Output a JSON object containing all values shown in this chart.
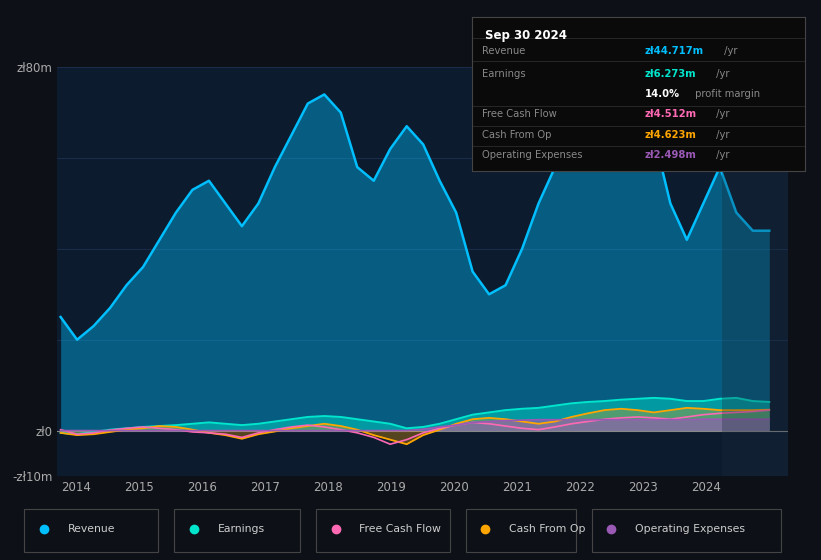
{
  "bg_color": "#0d1117",
  "plot_bg_color": "#0d1b2e",
  "ylim": [
    -10,
    80
  ],
  "xlim": [
    2013.7,
    2025.3
  ],
  "xticks": [
    2014,
    2015,
    2016,
    2017,
    2018,
    2019,
    2020,
    2021,
    2022,
    2023,
    2024
  ],
  "grid_color": "#1e3050",
  "colors": {
    "revenue": "#00bfff",
    "earnings": "#00e5cc",
    "fcf": "#ff69b4",
    "cfo": "#ffa500",
    "opex": "#9b59b6"
  },
  "revenue": [
    25,
    20,
    23,
    27,
    32,
    36,
    42,
    48,
    53,
    55,
    50,
    45,
    50,
    58,
    65,
    72,
    74,
    70,
    58,
    55,
    62,
    67,
    63,
    55,
    48,
    35,
    30,
    32,
    40,
    50,
    58,
    65,
    68,
    70,
    68,
    70,
    65,
    50,
    42,
    50,
    58,
    48,
    44,
    44
  ],
  "earnings": [
    -0.5,
    -0.8,
    -0.3,
    0.2,
    0.5,
    0.8,
    1.0,
    1.2,
    1.5,
    1.8,
    1.5,
    1.2,
    1.5,
    2.0,
    2.5,
    3.0,
    3.2,
    3.0,
    2.5,
    2.0,
    1.5,
    0.5,
    0.8,
    1.5,
    2.5,
    3.5,
    4.0,
    4.5,
    4.8,
    5.0,
    5.5,
    6.0,
    6.3,
    6.5,
    6.8,
    7.0,
    7.2,
    7.0,
    6.5,
    6.5,
    7.0,
    7.2,
    6.5,
    6.3
  ],
  "fcf": [
    0.2,
    -0.8,
    -0.5,
    0.1,
    0.5,
    0.8,
    0.5,
    0.2,
    -0.3,
    -0.5,
    -0.8,
    -1.5,
    -0.5,
    0.2,
    0.8,
    1.2,
    0.8,
    0.2,
    -0.5,
    -1.5,
    -3.0,
    -2.0,
    -0.5,
    0.5,
    1.2,
    1.8,
    1.5,
    1.0,
    0.5,
    0.2,
    0.8,
    1.5,
    2.0,
    2.5,
    2.8,
    3.0,
    2.8,
    2.5,
    3.0,
    3.5,
    3.8,
    4.0,
    4.2,
    4.5
  ],
  "cfo": [
    -0.5,
    -1.0,
    -0.8,
    -0.3,
    0.2,
    0.5,
    1.0,
    0.8,
    0.2,
    -0.5,
    -1.0,
    -1.8,
    -0.8,
    -0.2,
    0.5,
    1.0,
    1.5,
    1.0,
    0.2,
    -1.0,
    -2.0,
    -3.0,
    -1.0,
    0.2,
    1.5,
    2.5,
    2.8,
    2.5,
    2.0,
    1.5,
    2.0,
    3.0,
    3.8,
    4.5,
    4.8,
    4.5,
    4.0,
    4.5,
    5.0,
    4.8,
    4.5,
    4.5,
    4.5,
    4.6
  ],
  "opex": [
    0.0,
    0.0,
    0.0,
    0.0,
    0.0,
    0.0,
    0.0,
    0.0,
    0.0,
    0.0,
    0.0,
    0.0,
    0.0,
    0.0,
    0.0,
    0.0,
    0.0,
    0.0,
    0.0,
    0.0,
    0.0,
    0.0,
    0.3,
    0.8,
    1.2,
    1.8,
    2.0,
    2.2,
    2.3,
    2.4,
    2.4,
    2.4,
    2.4,
    2.4,
    2.4,
    2.4,
    2.4,
    2.4,
    2.4,
    2.5,
    2.5,
    2.5,
    2.5,
    2.5
  ],
  "info_box": {
    "title": "Sep 30 2024",
    "rows": [
      {
        "label": "Revenue",
        "val": "zł44.717m",
        "suffix": " /yr",
        "val_color": "#00bfff"
      },
      {
        "label": "Earnings",
        "val": "zł6.273m",
        "suffix": " /yr",
        "val_color": "#00e5cc"
      },
      {
        "label": "",
        "val": "14.0%",
        "suffix": " profit margin",
        "val_color": "#ffffff"
      },
      {
        "label": "Free Cash Flow",
        "val": "zł4.512m",
        "suffix": " /yr",
        "val_color": "#ff69b4"
      },
      {
        "label": "Cash From Op",
        "val": "zł4.623m",
        "suffix": " /yr",
        "val_color": "#ffa500"
      },
      {
        "label": "Operating Expenses",
        "val": "zł2.498m",
        "suffix": " /yr",
        "val_color": "#9b59b6"
      }
    ]
  },
  "legend": [
    {
      "label": "Revenue",
      "color": "#00bfff"
    },
    {
      "label": "Earnings",
      "color": "#00e5cc"
    },
    {
      "label": "Free Cash Flow",
      "color": "#ff69b4"
    },
    {
      "label": "Cash From Op",
      "color": "#ffa500"
    },
    {
      "label": "Operating Expenses",
      "color": "#9b59b6"
    }
  ]
}
